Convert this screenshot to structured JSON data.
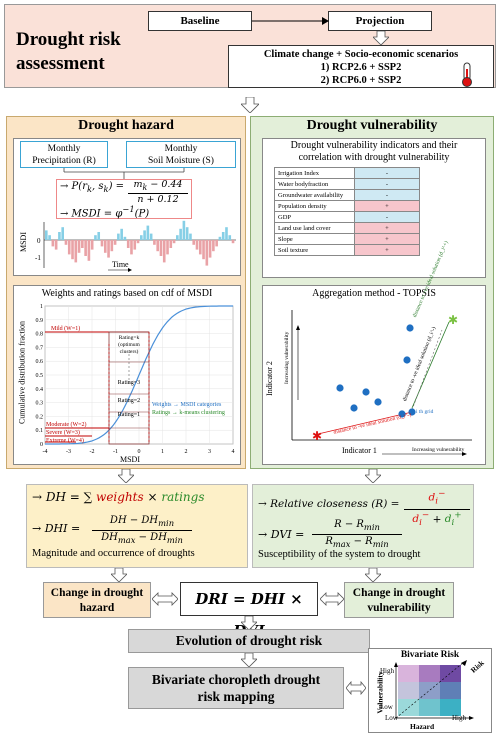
{
  "top": {
    "title": "Drought risk assessment",
    "baseline": "Baseline",
    "projection": "Projection",
    "scenario_header": "Climate change + Socio-economic scenarios",
    "scenario_1": "1) RCP2.6 + SSP2",
    "scenario_2": "2) RCP6.0 + SSP2"
  },
  "hazard": {
    "title": "Drought hazard",
    "precip_line1": "Monthly",
    "precip_line2": "Precipitation (R)",
    "soil_line1": "Monthly",
    "soil_line2": "Soil Moisture (S)",
    "eq_p": "→ P(r_k, s_k) = (m_k − 0.44)/(n + 0.12)",
    "eq_msdi": "→ MSDI = φ⁻¹(P)",
    "series_ylabel": "MSDI",
    "series_xlabel": "Time",
    "series_ticks": [
      "0",
      "-1"
    ],
    "cdf_title": "Weights and ratings based on cdf of MSDI",
    "cdf_ylabel": "Cumulative distribution fraction",
    "cdf_xlabel": "MSDI",
    "cdf_yticks": [
      "0",
      "0.1",
      "0.2",
      "0.3",
      "0.4",
      "0.5",
      "0.6",
      "0.7",
      "0.8",
      "0.9",
      "1"
    ],
    "cdf_xticks": [
      "-4",
      "-3",
      "-2",
      "-1",
      "0",
      "1",
      "2",
      "3",
      "4"
    ],
    "mild": "Mild (W=1)",
    "moderate": "Moderate (W=2)",
    "severe": "Severe (W=3)",
    "extreme": "Extreme (W=4)",
    "rating_k": "Rating=k",
    "rating_k_sub": "(optimum clusters)",
    "rating_3": "Rating=3",
    "rating_2": "Rating=2",
    "rating_1": "Rating=1",
    "note_weights": "Weights → MSDI categories",
    "note_ratings": "Ratings → k-means clustering"
  },
  "vulnerability": {
    "title": "Drought vulnerability",
    "subtitle_line1": "Drought vulnerability indicators and their",
    "subtitle_line2": "correlation with drought vulnerability",
    "indicators": [
      {
        "name": "Irrigation Index",
        "sign": "-"
      },
      {
        "name": "Water bodyfraction",
        "sign": "-"
      },
      {
        "name": "Groundwater availability",
        "sign": "-"
      },
      {
        "name": "Population density",
        "sign": "+"
      },
      {
        "name": "GDP",
        "sign": "-"
      },
      {
        "name": "Land use land cover",
        "sign": "+"
      },
      {
        "name": "Slope",
        "sign": "+"
      },
      {
        "name": "Soil texture",
        "sign": "+"
      }
    ],
    "topsis_title": "Aggregation method - TOPSIS",
    "ind1": "Indicator 1",
    "ind2": "Indicator 2",
    "inc_vuln_y": "Increasing vulnerability",
    "inc_vuln_x": "Increasing vulnerability",
    "dist_pos": "distance to +ve ideal solution (d_i^+)",
    "dist_neg_diag": "distance to -ve ideal solution (d_i^-)",
    "dist_neg": "distance to -ve ideal solution (d_i^-)",
    "ith_grid": "i th grid"
  },
  "middle": {
    "dh_eq_prefix": "→ DH = ∑",
    "dh_weights": "weights",
    "dh_times": "×",
    "dh_ratings": "ratings",
    "dhi_prefix": "→ DHI =",
    "dhi_num": "DH − DH_min",
    "dhi_den": "DH_max − DH_min",
    "dhi_caption": "Magnitude and occurrence of droughts",
    "rc_prefix": "→ Relative closeness (R) =",
    "rc_num": "d_i^-",
    "rc_den": "d_i^- + d_i^+",
    "dvi_prefix": "→ DVI =",
    "dvi_num": "R − R_min",
    "dvi_den": "R_max − R_min",
    "dvi_caption": "Susceptibility of the system to drought"
  },
  "bottom": {
    "change_hazard_1": "Change in drought",
    "change_hazard_2": "hazard",
    "dri": "DRI = DHI × DVI",
    "change_vuln_1": "Change in drought",
    "change_vuln_2": "vulnerability",
    "evolution": "Evolution of drought risk",
    "mapping_1": "Bivariate choropleth drought",
    "mapping_2": "risk mapping",
    "bivar_title": "Bivariate Risk",
    "bivar_risk": "Risk",
    "bivar_vuln": "Vulnerability",
    "bivar_hazard": "Hazard",
    "bivar_high_y": "High",
    "bivar_low_y": "Low",
    "bivar_low_x": "Low",
    "bivar_high_x": "High"
  },
  "colors": {
    "top_bg": "#fae1d8",
    "hazard_bg": "#fbe5c6",
    "vuln_bg": "#e3efd9",
    "grey_box": "#d8d8d8",
    "bar_pos": "#86cfe6",
    "bar_neg": "#e9a2a6",
    "dots": "#1f6fc2",
    "mild_line": "#c00000",
    "cdf_curve": "#4a90d9"
  }
}
